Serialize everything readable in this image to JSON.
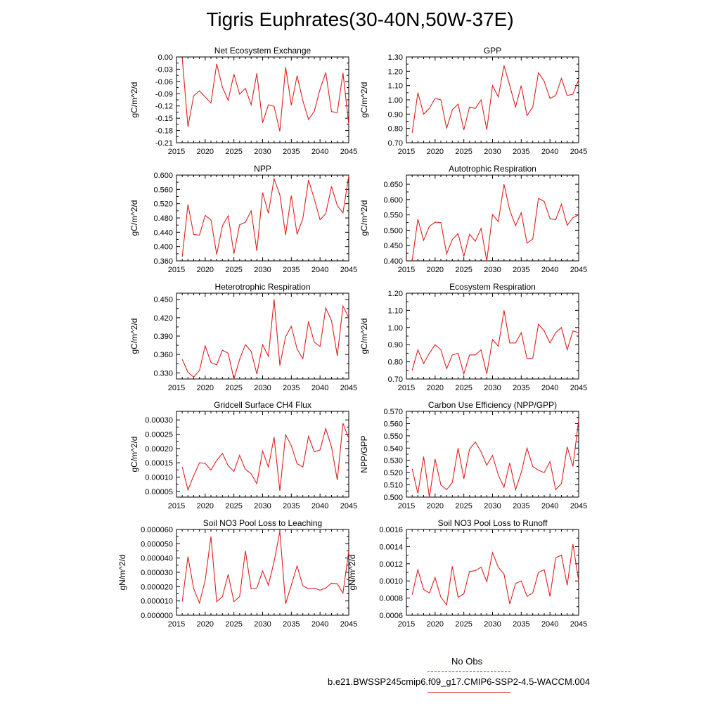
{
  "title": "Tigris Euphrates(30-40N,50W-37E)",
  "legend": {
    "obs_label": "No Obs",
    "run_label": "b.e21.BWSSP245cmip6.f09_g17.CMIP6-SSP2-4.5-WACCM.004",
    "obs_color": "#3a3ad0",
    "run_color": "#e02020"
  },
  "chart_data": [
    {
      "type": "line",
      "title": "Net Ecosystem Exchange",
      "ylabel": "gC/m^2/d",
      "xlim": [
        2015,
        2045
      ],
      "ylim": [
        -0.21,
        0.0
      ],
      "xticks": [
        2015,
        2020,
        2025,
        2030,
        2035,
        2040,
        2045
      ],
      "yticks": [
        -0.21,
        -0.18,
        -0.15,
        -0.12,
        -0.09,
        -0.06,
        -0.03,
        0.0
      ],
      "ytick_labels": [
        "-0.21",
        "-0.18",
        "-0.15",
        "-0.12",
        "-0.09",
        "-0.06",
        "-0.03",
        "0.00"
      ],
      "x": [
        2016,
        2017,
        2018,
        2019,
        2020,
        2021,
        2022,
        2023,
        2024,
        2025,
        2026,
        2027,
        2028,
        2029,
        2030,
        2031,
        2032,
        2033,
        2034,
        2035,
        2036,
        2037,
        2038,
        2039,
        2040,
        2041,
        2042,
        2043,
        2044,
        2045
      ],
      "values": [
        -0.003,
        -0.171,
        -0.095,
        -0.083,
        -0.098,
        -0.113,
        -0.017,
        -0.074,
        -0.106,
        -0.042,
        -0.091,
        -0.077,
        -0.117,
        -0.04,
        -0.161,
        -0.117,
        -0.121,
        -0.182,
        -0.025,
        -0.118,
        -0.046,
        -0.107,
        -0.153,
        -0.133,
        -0.079,
        -0.038,
        -0.134,
        -0.136,
        -0.039,
        -0.165
      ]
    },
    {
      "type": "line",
      "title": "GPP",
      "ylabel": "gC/m^2/d",
      "xlim": [
        2015,
        2045
      ],
      "ylim": [
        0.7,
        1.3
      ],
      "xticks": [
        2015,
        2020,
        2025,
        2030,
        2035,
        2040,
        2045
      ],
      "yticks": [
        0.7,
        0.8,
        0.9,
        1.0,
        1.1,
        1.2,
        1.3
      ],
      "ytick_labels": [
        "0.70",
        "0.80",
        "0.90",
        "1.00",
        "1.10",
        "1.20",
        "1.30"
      ],
      "x": [
        2016,
        2017,
        2018,
        2019,
        2020,
        2021,
        2022,
        2023,
        2024,
        2025,
        2026,
        2027,
        2028,
        2029,
        2030,
        2031,
        2032,
        2033,
        2034,
        2035,
        2036,
        2037,
        2038,
        2039,
        2040,
        2041,
        2042,
        2043,
        2044,
        2045
      ],
      "values": [
        0.77,
        1.05,
        0.9,
        0.94,
        1.01,
        1.0,
        0.8,
        0.93,
        0.97,
        0.79,
        0.95,
        0.94,
        1.0,
        0.79,
        1.1,
        1.02,
        1.24,
        1.1,
        0.95,
        1.1,
        0.89,
        0.95,
        1.19,
        1.13,
        1.01,
        1.03,
        1.15,
        1.03,
        1.04,
        1.14
      ]
    },
    {
      "type": "line",
      "title": "NPP",
      "ylabel": "gC/m^2/d",
      "xlim": [
        2015,
        2045
      ],
      "ylim": [
        0.36,
        0.6
      ],
      "xticks": [
        2015,
        2020,
        2025,
        2030,
        2035,
        2040,
        2045
      ],
      "yticks": [
        0.36,
        0.4,
        0.44,
        0.48,
        0.52,
        0.56,
        0.6
      ],
      "ytick_labels": [
        "0.360",
        "0.400",
        "0.440",
        "0.480",
        "0.520",
        "0.560",
        "0.600"
      ],
      "x": [
        2016,
        2017,
        2018,
        2019,
        2020,
        2021,
        2022,
        2023,
        2024,
        2025,
        2026,
        2027,
        2028,
        2029,
        2030,
        2031,
        2032,
        2033,
        2034,
        2035,
        2036,
        2037,
        2038,
        2039,
        2040,
        2041,
        2042,
        2043,
        2044,
        2045
      ],
      "values": [
        0.372,
        0.518,
        0.434,
        0.432,
        0.487,
        0.475,
        0.378,
        0.458,
        0.486,
        0.38,
        0.461,
        0.468,
        0.5,
        0.388,
        0.551,
        0.493,
        0.59,
        0.545,
        0.433,
        0.543,
        0.434,
        0.478,
        0.586,
        0.533,
        0.475,
        0.492,
        0.568,
        0.515,
        0.494,
        0.598
      ]
    },
    {
      "type": "line",
      "title": "Autotrophic Respiration",
      "ylabel": "gC/m^2/d",
      "xlim": [
        2015,
        2045
      ],
      "ylim": [
        0.4,
        0.68
      ],
      "xticks": [
        2015,
        2020,
        2025,
        2030,
        2035,
        2040,
        2045
      ],
      "yticks": [
        0.4,
        0.45,
        0.5,
        0.55,
        0.6,
        0.65
      ],
      "ytick_labels": [
        "0.400",
        "0.450",
        "0.500",
        "0.550",
        "0.600",
        "0.650"
      ],
      "x": [
        2016,
        2017,
        2018,
        2019,
        2020,
        2021,
        2022,
        2023,
        2024,
        2025,
        2026,
        2027,
        2028,
        2029,
        2030,
        2031,
        2032,
        2033,
        2034,
        2035,
        2036,
        2037,
        2038,
        2039,
        2040,
        2041,
        2042,
        2043,
        2044,
        2045
      ],
      "values": [
        0.4,
        0.536,
        0.467,
        0.513,
        0.526,
        0.525,
        0.423,
        0.47,
        0.489,
        0.414,
        0.487,
        0.464,
        0.506,
        0.4,
        0.551,
        0.528,
        0.65,
        0.565,
        0.515,
        0.557,
        0.458,
        0.471,
        0.604,
        0.594,
        0.538,
        0.534,
        0.585,
        0.516,
        0.541,
        0.55
      ]
    },
    {
      "type": "line",
      "title": "Heterotrophic Respiration",
      "ylabel": "gC/m^2/d",
      "xlim": [
        2015,
        2045
      ],
      "ylim": [
        0.32,
        0.46
      ],
      "xticks": [
        2015,
        2020,
        2025,
        2030,
        2035,
        2040,
        2045
      ],
      "yticks": [
        0.33,
        0.36,
        0.39,
        0.42,
        0.45
      ],
      "ytick_labels": [
        "0.330",
        "0.360",
        "0.390",
        "0.420",
        "0.450"
      ],
      "x": [
        2016,
        2017,
        2018,
        2019,
        2020,
        2021,
        2022,
        2023,
        2024,
        2025,
        2026,
        2027,
        2028,
        2029,
        2030,
        2031,
        2032,
        2033,
        2034,
        2035,
        2036,
        2037,
        2038,
        2039,
        2040,
        2041,
        2042,
        2043,
        2044,
        2045
      ],
      "values": [
        0.352,
        0.331,
        0.323,
        0.334,
        0.374,
        0.347,
        0.343,
        0.367,
        0.362,
        0.32,
        0.352,
        0.376,
        0.365,
        0.328,
        0.376,
        0.357,
        0.45,
        0.342,
        0.389,
        0.406,
        0.369,
        0.353,
        0.414,
        0.38,
        0.373,
        0.436,
        0.415,
        0.358,
        0.439,
        0.42
      ]
    },
    {
      "type": "line",
      "title": "Ecosystem Respiration",
      "ylabel": "gC/m^2/d",
      "xlim": [
        2015,
        2045
      ],
      "ylim": [
        0.7,
        1.2
      ],
      "xticks": [
        2015,
        2020,
        2025,
        2030,
        2035,
        2040,
        2045
      ],
      "yticks": [
        0.7,
        0.8,
        0.9,
        1.0,
        1.1,
        1.2
      ],
      "ytick_labels": [
        "0.70",
        "0.80",
        "0.90",
        "1.00",
        "1.10",
        "1.20"
      ],
      "x": [
        2016,
        2017,
        2018,
        2019,
        2020,
        2021,
        2022,
        2023,
        2024,
        2025,
        2026,
        2027,
        2028,
        2029,
        2030,
        2031,
        2032,
        2033,
        2034,
        2035,
        2036,
        2037,
        2038,
        2039,
        2040,
        2041,
        2042,
        2043,
        2044,
        2045
      ],
      "values": [
        0.75,
        0.87,
        0.79,
        0.85,
        0.9,
        0.87,
        0.76,
        0.84,
        0.85,
        0.73,
        0.84,
        0.84,
        0.87,
        0.73,
        0.93,
        0.89,
        1.1,
        0.91,
        0.91,
        0.97,
        0.82,
        0.82,
        1.02,
        0.98,
        0.91,
        0.97,
        1.0,
        0.87,
        0.98,
        0.97
      ]
    },
    {
      "type": "line",
      "title": "Gridcell Surface CH4 Flux",
      "ylabel": "gC/m^2/d",
      "xlim": [
        2015,
        2045
      ],
      "ylim": [
        3e-05,
        0.00033
      ],
      "xticks": [
        2015,
        2020,
        2025,
        2030,
        2035,
        2040,
        2045
      ],
      "yticks": [
        5e-05,
        0.0001,
        0.00015,
        0.0002,
        0.00025,
        0.0003
      ],
      "ytick_labels": [
        "0.00005",
        "0.00010",
        "0.00015",
        "0.00020",
        "0.00025",
        "0.00030"
      ],
      "x": [
        2016,
        2017,
        2018,
        2019,
        2020,
        2021,
        2022,
        2023,
        2024,
        2025,
        2026,
        2027,
        2028,
        2029,
        2030,
        2031,
        2032,
        2033,
        2034,
        2035,
        2036,
        2037,
        2038,
        2039,
        2040,
        2041,
        2042,
        2043,
        2044,
        2045
      ],
      "values": [
        0.000135,
        5.5e-05,
        0.000105,
        0.00015,
        0.000148,
        0.000125,
        0.000158,
        0.000183,
        0.00014,
        0.00012,
        0.000176,
        0.000127,
        0.000112,
        7.7e-05,
        0.000191,
        0.000135,
        0.00024,
        5.2e-05,
        0.000248,
        0.00021,
        0.000147,
        0.000135,
        0.000243,
        0.000188,
        0.000195,
        0.00027,
        0.000205,
        9e-05,
        0.000288,
        0.000235
      ]
    },
    {
      "type": "line",
      "title": "Carbon Use Efficiency (NPP/GPP)",
      "ylabel": "NPP/GPP",
      "xlim": [
        2015,
        2045
      ],
      "ylim": [
        0.5,
        0.57
      ],
      "xticks": [
        2015,
        2020,
        2025,
        2030,
        2035,
        2040,
        2045
      ],
      "yticks": [
        0.5,
        0.51,
        0.52,
        0.53,
        0.54,
        0.55,
        0.56,
        0.57
      ],
      "ytick_labels": [
        "0.500",
        "0.510",
        "0.520",
        "0.530",
        "0.540",
        "0.550",
        "0.560",
        "0.570"
      ],
      "x": [
        2016,
        2017,
        2018,
        2019,
        2020,
        2021,
        2022,
        2023,
        2024,
        2025,
        2026,
        2027,
        2028,
        2029,
        2030,
        2031,
        2032,
        2033,
        2034,
        2035,
        2036,
        2037,
        2038,
        2039,
        2040,
        2041,
        2042,
        2043,
        2044,
        2045
      ],
      "values": [
        0.523,
        0.503,
        0.533,
        0.5,
        0.531,
        0.51,
        0.506,
        0.512,
        0.54,
        0.515,
        0.539,
        0.545,
        0.537,
        0.526,
        0.534,
        0.518,
        0.508,
        0.528,
        0.506,
        0.52,
        0.54,
        0.525,
        0.522,
        0.52,
        0.529,
        0.506,
        0.511,
        0.541,
        0.525,
        0.563
      ]
    },
    {
      "type": "line",
      "title": "Soil NO3 Pool Loss to Leaching",
      "ylabel": "gN/m^2/d",
      "xlim": [
        2015,
        2045
      ],
      "ylim": [
        0.0,
        6e-05
      ],
      "xticks": [
        2015,
        2020,
        2025,
        2030,
        2035,
        2040,
        2045
      ],
      "yticks": [
        0.0,
        1e-05,
        2e-05,
        3e-05,
        4e-05,
        5e-05,
        6e-05
      ],
      "ytick_labels": [
        "0.000000",
        "0.000010",
        "0.000020",
        "0.000030",
        "0.000040",
        "0.000050",
        "0.000060"
      ],
      "x": [
        2016,
        2017,
        2018,
        2019,
        2020,
        2021,
        2022,
        2023,
        2024,
        2025,
        2026,
        2027,
        2028,
        2029,
        2030,
        2031,
        2032,
        2033,
        2034,
        2035,
        2036,
        2037,
        2038,
        2039,
        2040,
        2041,
        2042,
        2043,
        2044,
        2045
      ],
      "values": [
        9.5e-06,
        4.1e-05,
        1.85e-05,
        8.5e-06,
        2.45e-05,
        5.5e-05,
        9.5e-06,
        1.3e-05,
        2.85e-05,
        9.5e-06,
        1.3e-05,
        4.5e-05,
        1.85e-05,
        1.9e-05,
        3.1e-05,
        2.1e-05,
        3.75e-05,
        5.85e-05,
        8e-06,
        2.1e-05,
        3.45e-05,
        2.05e-05,
        1.85e-05,
        1.9e-05,
        1.75e-05,
        1.9e-05,
        2.25e-05,
        2.2e-05,
        1.55e-05,
        4.5e-05
      ]
    },
    {
      "type": "line",
      "title": "Soil NO3 Pool Loss to Runoff",
      "ylabel": "gN/m^2/d",
      "xlim": [
        2015,
        2045
      ],
      "ylim": [
        0.0006,
        0.0016
      ],
      "xticks": [
        2015,
        2020,
        2025,
        2030,
        2035,
        2040,
        2045
      ],
      "yticks": [
        0.0006,
        0.0008,
        0.001,
        0.0012,
        0.0014,
        0.0016
      ],
      "ytick_labels": [
        "0.0006",
        "0.0008",
        "0.0010",
        "0.0012",
        "0.0014",
        "0.0016"
      ],
      "x": [
        2016,
        2017,
        2018,
        2019,
        2020,
        2021,
        2022,
        2023,
        2024,
        2025,
        2026,
        2027,
        2028,
        2029,
        2030,
        2031,
        2032,
        2033,
        2034,
        2035,
        2036,
        2037,
        2038,
        2039,
        2040,
        2041,
        2042,
        2043,
        2044,
        2045
      ],
      "values": [
        0.00084,
        0.00113,
        0.0009,
        0.00086,
        0.00104,
        0.00081,
        0.00072,
        0.00117,
        0.00081,
        0.00085,
        0.00111,
        0.00112,
        0.00116,
        0.00099,
        0.00133,
        0.00116,
        0.00108,
        0.00073,
        0.00097,
        0.001,
        0.00082,
        0.00086,
        0.0011,
        0.00113,
        0.00082,
        0.00127,
        0.0013,
        0.00095,
        0.00143,
        0.001
      ]
    }
  ]
}
